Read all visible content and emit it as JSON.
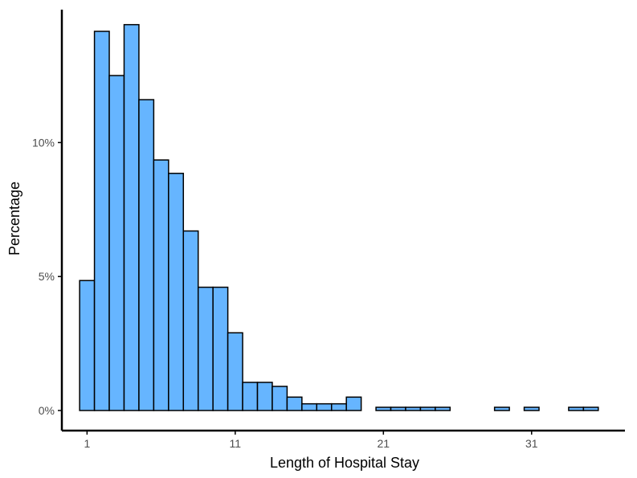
{
  "chart_data": {
    "type": "histogram",
    "xlabel": "Length of Hospital Stay",
    "ylabel": "Percentage",
    "x_ticks": [
      {
        "value": 1,
        "label": "1"
      },
      {
        "value": 11,
        "label": "11"
      },
      {
        "value": 21,
        "label": "21"
      },
      {
        "value": 31,
        "label": "31"
      }
    ],
    "y_ticks": [
      {
        "value": 0,
        "label": "0%"
      },
      {
        "value": 5,
        "label": "5%"
      },
      {
        "value": 10,
        "label": "10%"
      }
    ],
    "xlim": [
      -0.7,
      37.3
    ],
    "ylim": [
      -0.75,
      14.9
    ],
    "bin_width": 1,
    "bins": [
      {
        "start": 1,
        "value": 4.85
      },
      {
        "start": 2,
        "value": 14.15
      },
      {
        "start": 3,
        "value": 12.5
      },
      {
        "start": 4,
        "value": 14.4
      },
      {
        "start": 5,
        "value": 11.6
      },
      {
        "start": 6,
        "value": 9.35
      },
      {
        "start": 7,
        "value": 8.85
      },
      {
        "start": 8,
        "value": 6.7
      },
      {
        "start": 9,
        "value": 4.6
      },
      {
        "start": 10,
        "value": 4.6
      },
      {
        "start": 11,
        "value": 2.9
      },
      {
        "start": 12,
        "value": 1.05
      },
      {
        "start": 13,
        "value": 1.05
      },
      {
        "start": 14,
        "value": 0.9
      },
      {
        "start": 15,
        "value": 0.5
      },
      {
        "start": 16,
        "value": 0.25
      },
      {
        "start": 17,
        "value": 0.25
      },
      {
        "start": 18,
        "value": 0.25
      },
      {
        "start": 19,
        "value": 0.5
      },
      {
        "start": 20,
        "value": 0
      },
      {
        "start": 21,
        "value": 0.12
      },
      {
        "start": 22,
        "value": 0.12
      },
      {
        "start": 23,
        "value": 0.12
      },
      {
        "start": 24,
        "value": 0.12
      },
      {
        "start": 25,
        "value": 0.12
      },
      {
        "start": 26,
        "value": 0
      },
      {
        "start": 27,
        "value": 0
      },
      {
        "start": 28,
        "value": 0
      },
      {
        "start": 29,
        "value": 0.12
      },
      {
        "start": 30,
        "value": 0
      },
      {
        "start": 31,
        "value": 0.12
      },
      {
        "start": 32,
        "value": 0
      },
      {
        "start": 33,
        "value": 0
      },
      {
        "start": 34,
        "value": 0.12
      },
      {
        "start": 35,
        "value": 0.12
      }
    ],
    "bar_fill": "#66b5ff",
    "bar_stroke": "#000000",
    "axis_color": "#000000",
    "tick_label_color": "#4d4d4d"
  }
}
